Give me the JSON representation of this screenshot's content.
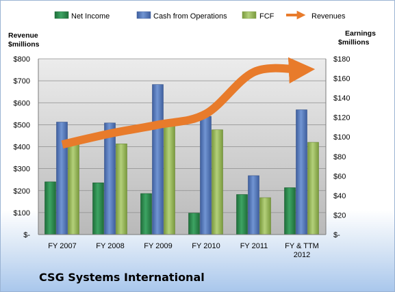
{
  "company_name": "CSG Systems International",
  "chart_data": {
    "type": "bar",
    "categories": [
      "FY 2007",
      "FY 2008",
      "FY 2009",
      "FY 2010",
      "FY 2011",
      "FY & TTM 2012"
    ],
    "series": [
      {
        "name": "Net Income",
        "axis": "right",
        "values": [
          54,
          53,
          42,
          22,
          41,
          48
        ],
        "color": "#2e8b4e"
      },
      {
        "name": "Cash from Operations",
        "axis": "left",
        "values": [
          512,
          508,
          683,
          538,
          268,
          568
        ],
        "color": "#5b7fbf"
      },
      {
        "name": "FCF",
        "axis": "left",
        "values": [
          422,
          413,
          513,
          477,
          168,
          420
        ],
        "color": "#98bb58"
      },
      {
        "name": "Revenues",
        "axis": "left",
        "type": "line",
        "values": [
          410,
          460,
          500,
          550,
          740,
          750
        ],
        "color": "#e87b2b"
      }
    ],
    "y_left": {
      "label": "Revenue $millions",
      "ylim": [
        0,
        800
      ],
      "ticks": [
        "$-",
        "$100",
        "$200",
        "$300",
        "$400",
        "$500",
        "$600",
        "$700",
        "$800"
      ]
    },
    "y_right": {
      "label": "Earnings $millions",
      "ylim": [
        0,
        180
      ],
      "ticks": [
        "$-",
        "$20",
        "$40",
        "$60",
        "$80",
        "$100",
        "$120",
        "$140",
        "$160",
        "$180"
      ]
    },
    "legend_position": "top",
    "grid": true
  }
}
